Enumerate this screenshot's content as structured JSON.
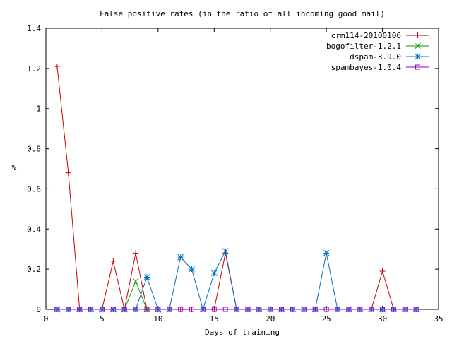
{
  "chart_data": {
    "type": "line",
    "title": "False positive rates (in the ratio of all incoming good mail)",
    "xlabel": "Days of training",
    "ylabel": "%",
    "xlim": [
      0,
      35
    ],
    "ylim": [
      0,
      1.4
    ],
    "xticks": [
      0,
      5,
      10,
      15,
      20,
      25,
      30,
      35
    ],
    "yticks": [
      0,
      0.2,
      0.4,
      0.6,
      0.8,
      1,
      1.2,
      1.4
    ],
    "xtick_labels": [
      "0",
      "5",
      "10",
      "15",
      "20",
      "25",
      "30",
      "35"
    ],
    "ytick_labels": [
      "0",
      "0.2",
      "0.4",
      "0.6",
      "0.8",
      "1",
      "1.2",
      "1.4"
    ],
    "grid": false,
    "legend_position": "top-right",
    "series": [
      {
        "name": "crm114-20100106",
        "color": "#cc0000",
        "marker": "plus",
        "x": [
          1,
          2,
          3,
          4,
          5,
          6,
          7,
          8,
          9,
          10,
          11,
          12,
          13,
          14,
          15,
          16,
          17,
          18,
          19,
          20,
          21,
          22,
          23,
          24,
          25,
          26,
          27,
          28,
          29,
          30,
          31,
          32,
          33
        ],
        "y": [
          1.21,
          0.68,
          0,
          0,
          0,
          0.24,
          0,
          0.28,
          0,
          0,
          0,
          0,
          0,
          0,
          0,
          0.28,
          0,
          0,
          0,
          0,
          0,
          0,
          0,
          0,
          0,
          0,
          0,
          0,
          0,
          0.19,
          0,
          0,
          0
        ]
      },
      {
        "name": "bogofilter-1.2.1",
        "color": "#00a000",
        "marker": "cross",
        "x": [
          1,
          2,
          3,
          4,
          5,
          6,
          7,
          8,
          9
        ],
        "y": [
          0,
          0,
          0,
          0,
          0,
          0,
          0,
          0.14,
          0
        ]
      },
      {
        "name": "dspam-3.9.0",
        "color": "#0070c0",
        "marker": "star",
        "x": [
          1,
          2,
          3,
          4,
          5,
          6,
          7,
          8,
          9,
          10,
          11,
          12,
          13,
          14,
          15,
          16,
          17,
          18,
          19,
          20,
          21,
          22,
          23,
          24,
          25,
          26,
          27,
          28,
          29,
          30,
          31,
          32,
          33
        ],
        "y": [
          0,
          0,
          0,
          0,
          0,
          0,
          0,
          0,
          0.16,
          0,
          0,
          0.26,
          0.2,
          0,
          0.18,
          0.29,
          0,
          0,
          0,
          0,
          0,
          0,
          0,
          0,
          0.28,
          0,
          0,
          0,
          0,
          0,
          0,
          0,
          0
        ]
      },
      {
        "name": "spambayes-1.0.4",
        "color": "#9400d3",
        "marker": "square",
        "x": [
          1,
          2,
          3,
          4,
          5,
          6,
          7,
          8,
          9,
          10,
          11,
          12,
          13,
          14,
          15,
          16,
          17,
          18,
          19,
          20,
          21,
          22,
          23,
          24,
          25,
          26,
          27,
          28,
          29,
          30,
          31,
          32,
          33
        ],
        "y": [
          0,
          0,
          0,
          0,
          0,
          0,
          0,
          0,
          0,
          0,
          0,
          0,
          0,
          0,
          0,
          0,
          0,
          0,
          0,
          0,
          0,
          0,
          0,
          0,
          0,
          0,
          0,
          0,
          0,
          0,
          0,
          0,
          0
        ]
      }
    ]
  }
}
